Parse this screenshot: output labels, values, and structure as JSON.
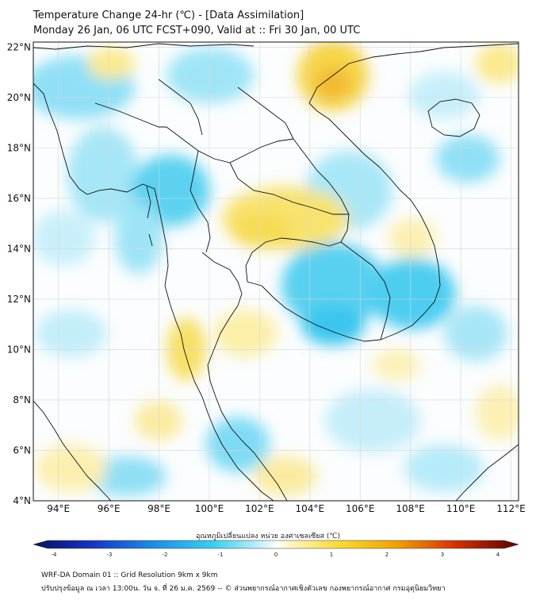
{
  "header": {
    "title_line1": "Temperature Change 24-hr (℃) - [Data Assimilation]",
    "title_line2": "Monday 26 Jan, 06 UTC FCST+090, Valid at :: Fri 30 Jan, 00 UTC"
  },
  "map": {
    "lon_range": [
      93,
      112.3
    ],
    "lat_range": [
      4,
      22.2
    ],
    "lat_labels": [
      "22°N",
      "20°N",
      "18°N",
      "16°N",
      "14°N",
      "12°N",
      "10°N",
      "8°N",
      "6°N",
      "4°N"
    ],
    "lon_labels": [
      "94°E",
      "96°E",
      "98°E",
      "100°E",
      "102°E",
      "104°E",
      "106°E",
      "108°E",
      "110°E",
      "112°E"
    ],
    "grid": true,
    "colors": {
      "warm": "#f5d000",
      "cool": "#35c8ee",
      "border": "#111111"
    }
  },
  "colorbar": {
    "title": "อุณหภูมิเปลี่ยนแปลง หน่วย องศาเซลเซียส (℃)",
    "ticks": [
      "-4",
      "-3",
      "-2",
      "-1",
      "0",
      "1",
      "2",
      "3",
      "4"
    ],
    "range": [
      -4,
      4
    ]
  },
  "footer": {
    "line1": "WRF-DA Domain 01 :: Grid Resolution 9km x 9km",
    "line2": "ปรับปรุงข้อมูล ณ เวลา 13:00น. วัน จ. ที่ 26 ม.ค. 2569 -- © ส่วนพยากรณ์อากาศเชิงตัวเลข กองพยากรณ์อากาศ กรมอุตุนิยมวิทยา"
  }
}
